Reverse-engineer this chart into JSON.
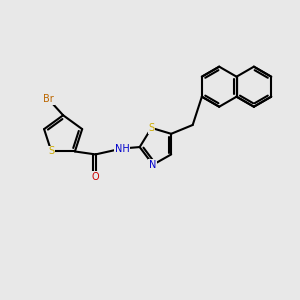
{
  "bg_color": "#e8e8e8",
  "bond_color": "#000000",
  "bond_width": 1.5,
  "S_color": "#ccaa00",
  "N_color": "#0000cc",
  "O_color": "#cc0000",
  "Br_color": "#bb6600",
  "font_size": 7.0,
  "fig_width": 3.0,
  "fig_height": 3.0,
  "dpi": 100,
  "xlim": [
    0,
    10
  ],
  "ylim": [
    0,
    10
  ]
}
